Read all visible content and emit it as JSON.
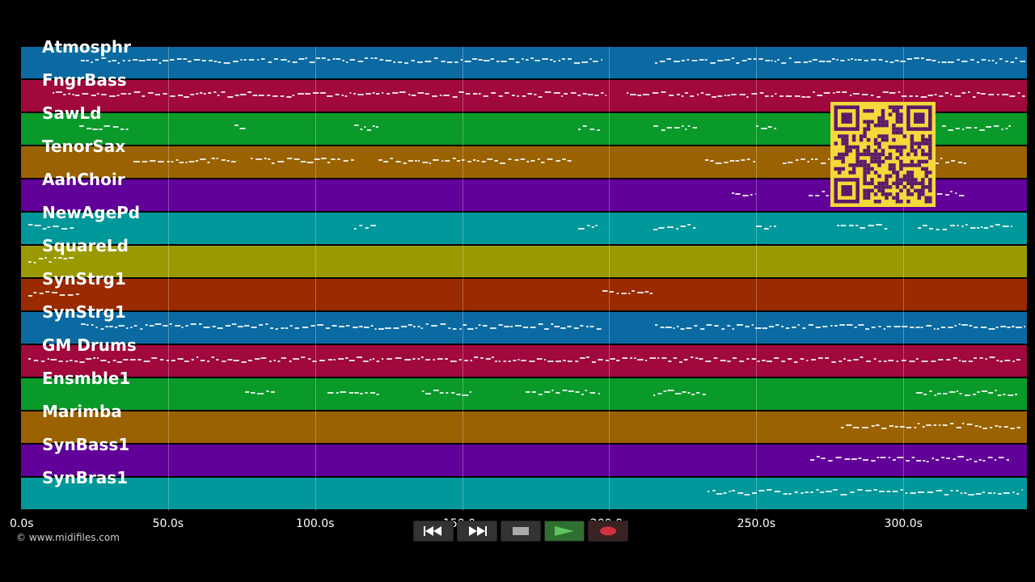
{
  "tracks": [
    {
      "name": "Atmosphr",
      "color": "#0b6aa2"
    },
    {
      "name": "FngrBass",
      "color": "#a0083e"
    },
    {
      "name": "SawLd",
      "color": "#0a9a2a"
    },
    {
      "name": "TenorSax",
      "color": "#9a6200"
    },
    {
      "name": "AahChoir",
      "color": "#62009a"
    },
    {
      "name": "NewAgePd",
      "color": "#00989a"
    },
    {
      "name": "SquareLd",
      "color": "#9a9a00"
    },
    {
      "name": "SynStrg1",
      "color": "#9a2a00"
    },
    {
      "name": "SynStrg1",
      "color": "#0b6aa2"
    },
    {
      "name": "GM Drums",
      "color": "#a0083e"
    },
    {
      "name": "Ensmble1",
      "color": "#0a9a2a"
    },
    {
      "name": "Marimba",
      "color": "#9a6200"
    },
    {
      "name": "SynBass1",
      "color": "#62009a"
    },
    {
      "name": "SynBras1",
      "color": "#00989a"
    }
  ],
  "time_axis": {
    "ticks": [
      "0.0s",
      "50.0s",
      "100.0s",
      "150.0s",
      "200.0s",
      "250.0s",
      "300.0s"
    ],
    "tick_values": [
      0,
      50,
      100,
      150,
      200,
      250,
      300
    ],
    "max_seconds": 342
  },
  "copyright": "© www.midifiles.com",
  "transport": {
    "rewind_icon": "rewind-icon",
    "forward_icon": "fast-forward-icon",
    "stop_icon": "stop-icon",
    "play_icon": "play-icon",
    "record_icon": "record-icon"
  },
  "qr": {
    "color_bg": "#f5d83a",
    "color_fg": "#5a1a6a"
  }
}
